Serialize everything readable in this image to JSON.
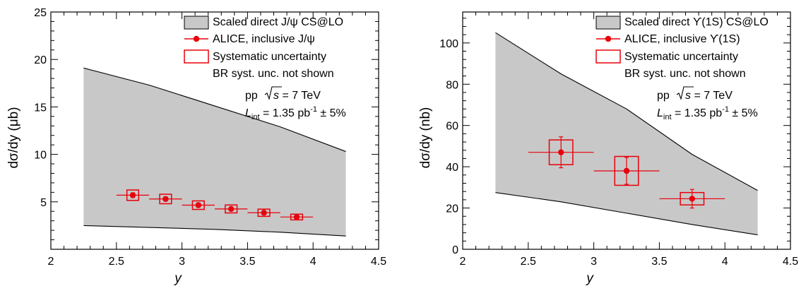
{
  "chart_data": [
    {
      "type": "scatter",
      "xlabel": "y",
      "ylabel": "dσ/dy (μb)",
      "xlim": [
        2,
        4.5
      ],
      "ylim": [
        0,
        25
      ],
      "xticks": [
        2,
        2.5,
        3,
        3.5,
        4,
        4.5
      ],
      "xtick_labels": [
        "2",
        "2.5",
        "3",
        "3.5",
        "4",
        "4.5"
      ],
      "yticks": [
        5,
        10,
        15,
        20,
        25
      ],
      "ytick_labels": [
        "5",
        "10",
        "15",
        "20",
        "25"
      ],
      "legend": {
        "placement": "top-right",
        "band_label": "Scaled direct J/ψ CS@LO",
        "points_label": "ALICE, inclusive J/ψ",
        "syst_label": "Systematic uncertainty",
        "note": "BR syst. unc. not shown"
      },
      "annotations": {
        "energy_prefix": "pp",
        "energy_value": "s = 7 TeV",
        "lumi_prefix": "L",
        "lumi_sub": "int",
        "lumi_value": " = 1.35 pb",
        "lumi_exp": "-1",
        "lumi_suffix": " ± 5%"
      },
      "band": {
        "color": "#c8c8c8",
        "x": [
          2.25,
          2.75,
          3.25,
          3.75,
          4.25
        ],
        "upper": [
          19.1,
          17.3,
          15.1,
          12.9,
          10.3
        ],
        "lower": [
          2.5,
          2.3,
          2.1,
          1.8,
          1.4
        ]
      },
      "series": [
        {
          "name": "ALICE, inclusive J/ψ",
          "color": "#e8000b",
          "x": [
            2.625,
            2.875,
            3.125,
            3.375,
            3.625,
            3.875
          ],
          "xerr": [
            0.125,
            0.125,
            0.125,
            0.125,
            0.125,
            0.125
          ],
          "y": [
            5.7,
            5.3,
            4.65,
            4.25,
            3.85,
            3.4
          ],
          "yerr_stat": [
            0.25,
            0.22,
            0.2,
            0.18,
            0.16,
            0.15
          ],
          "yerr_syst": [
            0.55,
            0.5,
            0.45,
            0.42,
            0.38,
            0.3
          ]
        }
      ]
    },
    {
      "type": "scatter",
      "xlabel": "y",
      "ylabel": "dσ/dy (nb)",
      "xlim": [
        2,
        4.5
      ],
      "ylim": [
        0,
        115
      ],
      "xticks": [
        2,
        2.5,
        3,
        3.5,
        4,
        4.5
      ],
      "xtick_labels": [
        "2",
        "2.5",
        "3",
        "3.5",
        "4",
        "4.5"
      ],
      "yticks": [
        0,
        20,
        40,
        60,
        80,
        100
      ],
      "ytick_labels": [
        "0",
        "20",
        "40",
        "60",
        "80",
        "100"
      ],
      "legend": {
        "placement": "top-right",
        "band_label": "Scaled direct ϒ(1S) CS@LO",
        "points_label": "ALICE, inclusive ϒ(1S)",
        "syst_label": "Systematic uncertainty",
        "note": "BR syst. unc. not shown"
      },
      "annotations": {
        "energy_prefix": "pp",
        "energy_value": "s = 7 TeV",
        "lumi_prefix": "L",
        "lumi_sub": "int",
        "lumi_value": " = 1.35 pb",
        "lumi_exp": "-1",
        "lumi_suffix": " ± 5%"
      },
      "band": {
        "color": "#c8c8c8",
        "x": [
          2.25,
          2.75,
          3.25,
          3.75,
          4.25
        ],
        "upper": [
          105,
          85,
          68,
          46,
          28.5
        ],
        "lower": [
          27.5,
          23,
          17.5,
          12,
          7
        ]
      },
      "series": [
        {
          "name": "ALICE, inclusive ϒ(1S)",
          "color": "#e8000b",
          "x": [
            2.75,
            3.25,
            3.75
          ],
          "xerr": [
            0.25,
            0.25,
            0.25
          ],
          "y": [
            47,
            38,
            24.5
          ],
          "yerr_stat": [
            7.5,
            6.5,
            4.5
          ],
          "yerr_syst": [
            6,
            7,
            3
          ]
        }
      ]
    }
  ]
}
